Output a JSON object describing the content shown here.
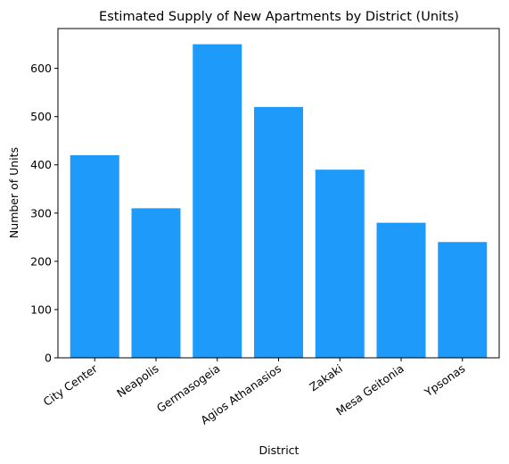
{
  "chart_data": {
    "type": "bar",
    "title": "Estimated Supply of New Apartments by District (Units)",
    "xlabel": "District",
    "ylabel": "Number of Units",
    "categories": [
      "City Center",
      "Neapolis",
      "Germasogeia",
      "Agios Athanasios",
      "Zakaki",
      "Mesa Geitonia",
      "Ypsonas"
    ],
    "values": [
      420,
      310,
      650,
      520,
      390,
      280,
      240
    ],
    "ylim": [
      0,
      682.5
    ],
    "yticks": [
      0,
      100,
      200,
      300,
      400,
      500,
      600
    ],
    "grid": false,
    "legend": "none",
    "bar_color": "#1E9BFA"
  }
}
